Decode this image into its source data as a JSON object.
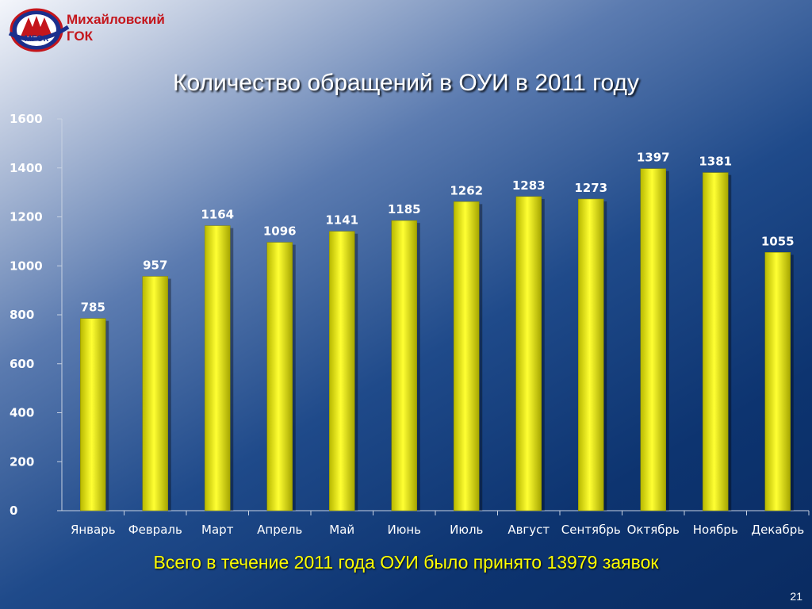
{
  "header": {
    "company_line1": "Михайловский",
    "company_line2": "ГОК",
    "logo_text": "МГОК"
  },
  "colors": {
    "bar_fill": "#ffff00",
    "company": "#c4161c",
    "summary": "#ffff00"
  },
  "summary": "Всего в течение 2011 года ОУИ было принято 13979 заявок",
  "page_number": "21",
  "chart_data": {
    "type": "bar",
    "title": "Количество обращений в ОУИ в 2011 году",
    "xlabel": "",
    "ylabel": "",
    "ylim": [
      0,
      1600
    ],
    "yticks": [
      0,
      200,
      400,
      600,
      800,
      1000,
      1200,
      1400,
      1600
    ],
    "grid": false,
    "legend": "none",
    "categories": [
      "Январь",
      "Февраль",
      "Март",
      "Апрель",
      "Май",
      "Июнь",
      "Июль",
      "Август",
      "Сентябрь",
      "Октябрь",
      "Ноябрь",
      "Декабрь"
    ],
    "values": [
      785,
      957,
      1164,
      1096,
      1141,
      1185,
      1262,
      1283,
      1273,
      1397,
      1381,
      1055
    ]
  }
}
